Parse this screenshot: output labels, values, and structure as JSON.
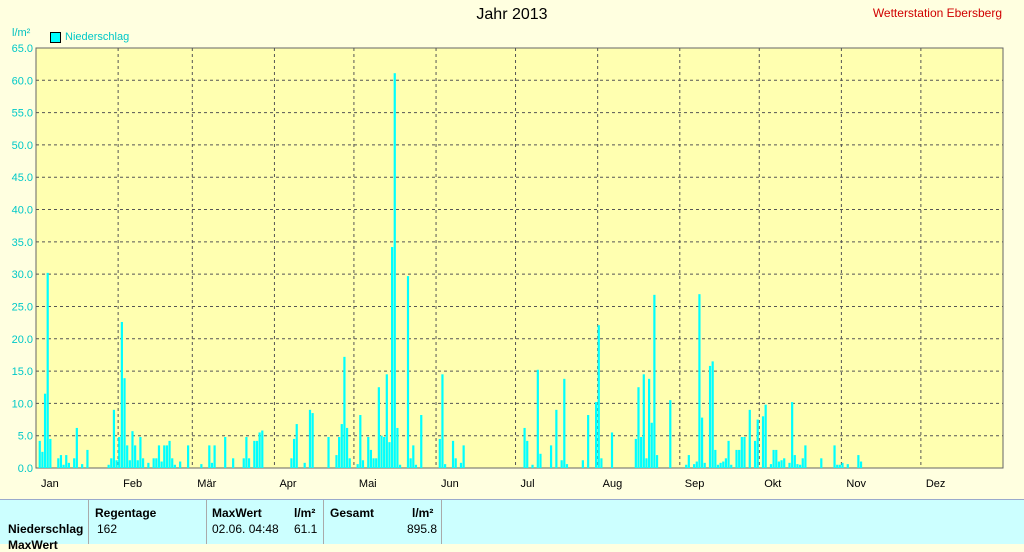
{
  "header": {
    "title": "Jahr 2013",
    "station": "Wetterstation Ebersberg",
    "unit": "l/m²",
    "legend": "Niederschlag"
  },
  "chart_data": {
    "type": "bar",
    "title": "Jahr 2013",
    "ylabel": "l/m²",
    "ylim": [
      0,
      65
    ],
    "yticks": [
      "0.0",
      "5.0",
      "10.0",
      "15.0",
      "20.0",
      "25.0",
      "30.0",
      "35.0",
      "40.0",
      "45.0",
      "50.0",
      "55.0",
      "60.0",
      "65.0"
    ],
    "xticks": [
      "Jan",
      "Feb",
      "Mär",
      "Apr",
      "Mai",
      "Jun",
      "Jul",
      "Aug",
      "Sep",
      "Okt",
      "Nov",
      "Dez"
    ],
    "grid": true,
    "legend_position": "top-left",
    "series": [
      {
        "name": "Niederschlag",
        "color": "#00ffff",
        "points": [
          [
            1,
            4.2
          ],
          [
            2,
            2.5
          ],
          [
            3,
            11.5
          ],
          [
            4,
            30.2
          ],
          [
            5,
            4.5
          ],
          [
            8,
            1.5
          ],
          [
            9,
            2.0
          ],
          [
            10,
            0.5
          ],
          [
            11,
            2.0
          ],
          [
            12,
            0.8
          ],
          [
            14,
            1.5
          ],
          [
            15,
            6.2
          ],
          [
            17,
            0.6
          ],
          [
            19,
            2.8
          ],
          [
            27,
            0.5
          ],
          [
            28,
            1.5
          ],
          [
            29,
            9.0
          ],
          [
            30,
            1.2
          ],
          [
            31,
            4.8
          ],
          [
            32,
            22.6
          ],
          [
            33,
            13.9
          ],
          [
            34,
            3.5
          ],
          [
            35,
            1.2
          ],
          [
            36,
            5.7
          ],
          [
            37,
            3.5
          ],
          [
            38,
            1.2
          ],
          [
            39,
            4.8
          ],
          [
            40,
            1.5
          ],
          [
            42,
            0.8
          ],
          [
            44,
            1.5
          ],
          [
            45,
            1.5
          ],
          [
            46,
            3.5
          ],
          [
            47,
            1.0
          ],
          [
            48,
            3.5
          ],
          [
            49,
            3.5
          ],
          [
            50,
            4.2
          ],
          [
            51,
            1.5
          ],
          [
            52,
            0.5
          ],
          [
            54,
            1.0
          ],
          [
            57,
            3.5
          ],
          [
            62,
            0.6
          ],
          [
            65,
            3.5
          ],
          [
            66,
            0.8
          ],
          [
            67,
            3.5
          ],
          [
            71,
            4.8
          ],
          [
            74,
            1.5
          ],
          [
            78,
            1.5
          ],
          [
            79,
            4.8
          ],
          [
            80,
            1.5
          ],
          [
            82,
            4.2
          ],
          [
            83,
            4.2
          ],
          [
            84,
            5.5
          ],
          [
            85,
            5.8
          ],
          [
            96,
            1.5
          ],
          [
            97,
            4.5
          ],
          [
            98,
            6.8
          ],
          [
            101,
            0.8
          ],
          [
            103,
            9.0
          ],
          [
            104,
            8.5
          ],
          [
            110,
            4.8
          ],
          [
            113,
            2.0
          ],
          [
            114,
            4.8
          ],
          [
            115,
            6.8
          ],
          [
            116,
            17.2
          ],
          [
            117,
            6.2
          ],
          [
            118,
            1.5
          ],
          [
            121,
            0.6
          ],
          [
            122,
            8.2
          ],
          [
            123,
            1.2
          ],
          [
            125,
            4.8
          ],
          [
            126,
            2.8
          ],
          [
            127,
            1.5
          ],
          [
            128,
            1.5
          ],
          [
            129,
            12.5
          ],
          [
            130,
            5.0
          ],
          [
            131,
            4.8
          ],
          [
            132,
            14.5
          ],
          [
            133,
            4.0
          ],
          [
            134,
            34.2
          ],
          [
            135,
            61.1
          ],
          [
            136,
            6.2
          ],
          [
            137,
            0.5
          ],
          [
            140,
            29.7
          ],
          [
            141,
            1.5
          ],
          [
            142,
            3.5
          ],
          [
            143,
            0.5
          ],
          [
            145,
            8.2
          ],
          [
            152,
            4.5
          ],
          [
            153,
            14.5
          ],
          [
            154,
            0.6
          ],
          [
            157,
            4.2
          ],
          [
            158,
            1.5
          ],
          [
            160,
            0.8
          ],
          [
            161,
            3.5
          ],
          [
            184,
            6.2
          ],
          [
            185,
            4.2
          ],
          [
            187,
            0.5
          ],
          [
            189,
            15.2
          ],
          [
            190,
            2.2
          ],
          [
            194,
            3.5
          ],
          [
            196,
            9.0
          ],
          [
            198,
            1.2
          ],
          [
            199,
            13.8
          ],
          [
            200,
            0.6
          ],
          [
            206,
            1.2
          ],
          [
            208,
            8.2
          ],
          [
            211,
            10.2
          ],
          [
            212,
            22.1
          ],
          [
            213,
            1.5
          ],
          [
            217,
            5.5
          ],
          [
            226,
            4.5
          ],
          [
            227,
            12.5
          ],
          [
            228,
            4.8
          ],
          [
            229,
            14.5
          ],
          [
            230,
            1.5
          ],
          [
            231,
            13.8
          ],
          [
            232,
            7.0
          ],
          [
            233,
            26.8
          ],
          [
            234,
            2.0
          ],
          [
            239,
            10.5
          ],
          [
            245,
            0.5
          ],
          [
            246,
            2.0
          ],
          [
            248,
            0.6
          ],
          [
            249,
            1.0
          ],
          [
            250,
            26.9
          ],
          [
            251,
            7.8
          ],
          [
            252,
            0.8
          ],
          [
            254,
            15.8
          ],
          [
            255,
            16.5
          ],
          [
            256,
            2.8
          ],
          [
            257,
            0.5
          ],
          [
            258,
            0.8
          ],
          [
            259,
            1.0
          ],
          [
            260,
            1.5
          ],
          [
            261,
            4.2
          ],
          [
            262,
            0.5
          ],
          [
            264,
            2.8
          ],
          [
            265,
            2.8
          ],
          [
            266,
            4.8
          ],
          [
            267,
            4.8
          ],
          [
            269,
            9.0
          ],
          [
            271,
            4.2
          ],
          [
            272,
            7.5
          ],
          [
            274,
            8.0
          ],
          [
            275,
            9.8
          ],
          [
            277,
            0.6
          ],
          [
            278,
            2.8
          ],
          [
            279,
            2.8
          ],
          [
            280,
            1.0
          ],
          [
            281,
            1.2
          ],
          [
            282,
            1.5
          ],
          [
            284,
            0.8
          ],
          [
            285,
            10.2
          ],
          [
            286,
            2.0
          ],
          [
            287,
            0.6
          ],
          [
            288,
            0.5
          ],
          [
            289,
            1.5
          ],
          [
            290,
            3.5
          ],
          [
            296,
            1.5
          ],
          [
            301,
            3.5
          ],
          [
            302,
            0.5
          ],
          [
            303,
            0.5
          ],
          [
            304,
            0.8
          ],
          [
            306,
            0.6
          ],
          [
            310,
            2.0
          ],
          [
            311,
            1.0
          ]
        ]
      }
    ],
    "days": 365
  },
  "stats": {
    "row_label": "Niederschlag",
    "row_label2": "MaxWert",
    "regentage_label": "Regentage",
    "regentage_value": "162",
    "maxwert_label": "MaxWert",
    "maxwert_unit": "l/m²",
    "maxwert_date": "02.06.  04:48",
    "maxwert_value": "61.1",
    "gesamt_label": "Gesamt",
    "gesamt_unit": "l/m²",
    "gesamt_value": "895.8"
  }
}
